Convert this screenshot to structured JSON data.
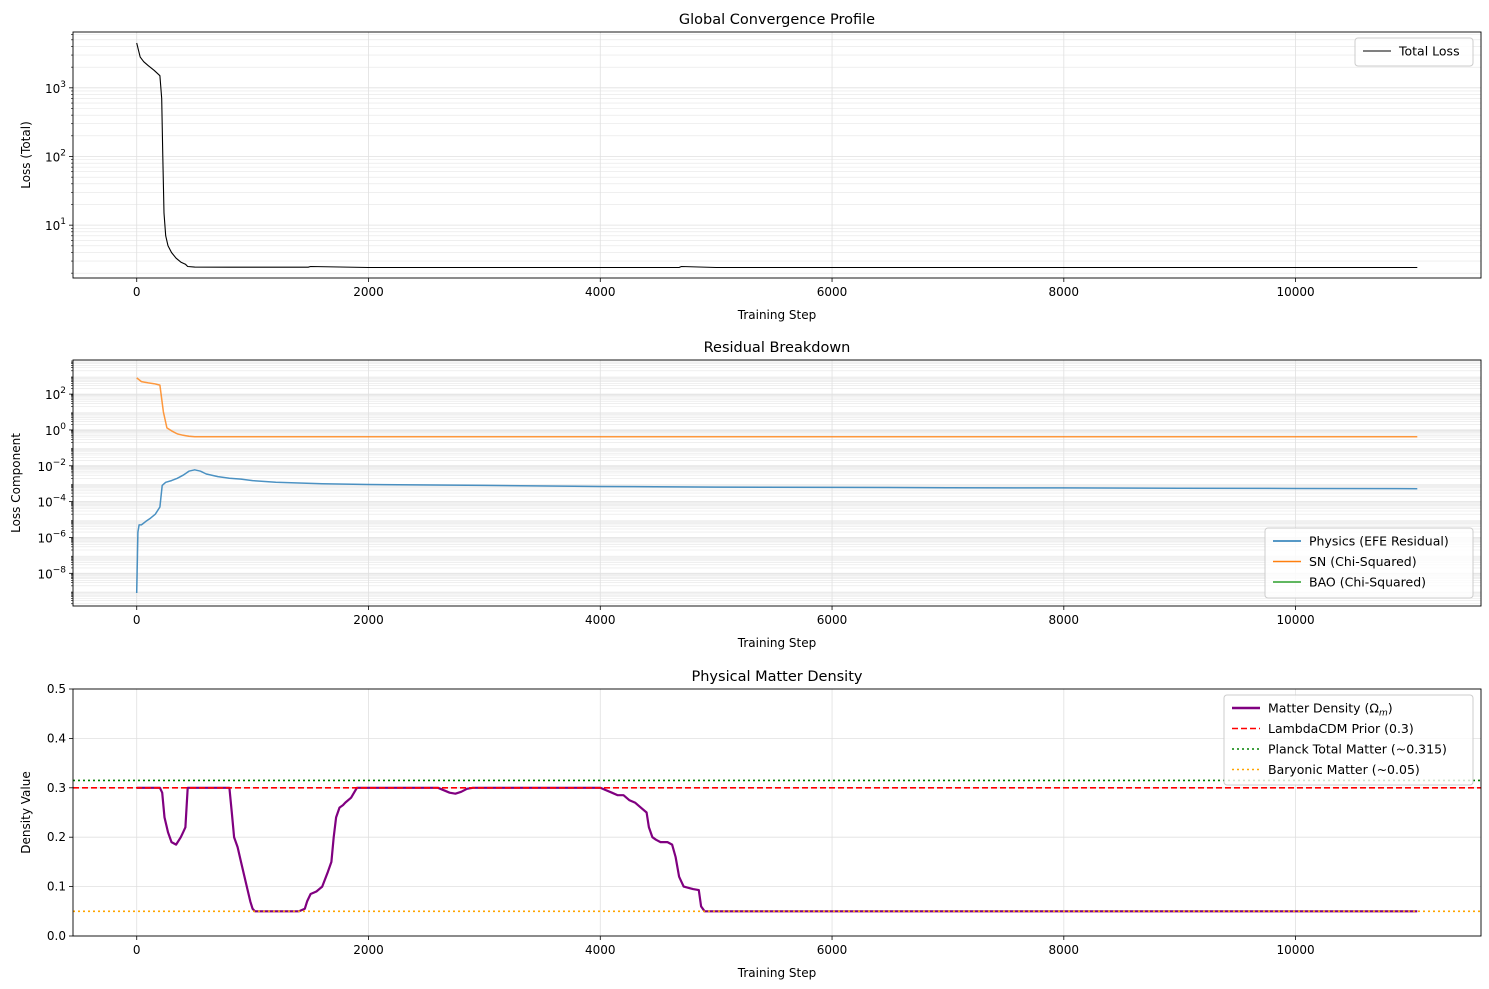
{
  "chart_data": [
    {
      "type": "line",
      "title": "Global Convergence Profile",
      "xlabel": "Training Step",
      "ylabel": "Loss (Total)",
      "xscale": "linear",
      "yscale": "log",
      "xlim": [
        -550,
        11600
      ],
      "ylim": [
        1.7,
        6500
      ],
      "xticks": [
        0,
        2000,
        4000,
        6000,
        8000,
        10000
      ],
      "xtick_labels": [
        "0",
        "2000",
        "4000",
        "6000",
        "8000",
        "10000"
      ],
      "yticks": [
        10,
        100,
        1000
      ],
      "ytick_labels": [
        "10",
        "10",
        "10"
      ],
      "ytick_exponents": [
        "1",
        "2",
        "3"
      ],
      "grid": true,
      "legend": "top-right",
      "series": [
        {
          "name": "Total Loss",
          "color": "#000000",
          "x": [
            0,
            30,
            60,
            100,
            150,
            200,
            215,
            225,
            235,
            250,
            270,
            300,
            340,
            380,
            420,
            440,
            500,
            800,
            1480,
            1500,
            2000,
            3000,
            4000,
            4680,
            4700,
            5000,
            6000,
            7000,
            8000,
            9000,
            10000,
            11050
          ],
          "y": [
            4500,
            2800,
            2400,
            2100,
            1800,
            1500,
            700,
            100,
            15,
            7,
            5,
            4,
            3.3,
            2.9,
            2.7,
            2.5,
            2.45,
            2.44,
            2.44,
            2.5,
            2.42,
            2.42,
            2.42,
            2.42,
            2.5,
            2.42,
            2.42,
            2.42,
            2.42,
            2.42,
            2.42,
            2.42
          ]
        }
      ]
    },
    {
      "type": "line",
      "title": "Residual Breakdown",
      "xlabel": "Training Step",
      "ylabel": "Loss Component",
      "xscale": "linear",
      "yscale": "log",
      "xlim": [
        -550,
        11600
      ],
      "ylim": [
        1.5e-10,
        8000
      ],
      "xticks": [
        0,
        2000,
        4000,
        6000,
        8000,
        10000
      ],
      "xtick_labels": [
        "0",
        "2000",
        "4000",
        "6000",
        "8000",
        "10000"
      ],
      "yticks": [
        1e-08,
        1e-06,
        0.0001,
        0.01,
        1,
        100
      ],
      "ytick_labels": [
        "10",
        "10",
        "10",
        "10",
        "10",
        "10"
      ],
      "ytick_exponents": [
        "−8",
        "−6",
        "−4",
        "−2",
        "0",
        "2"
      ],
      "grid": true,
      "legend": "lower-right",
      "series": [
        {
          "name": "Physics (EFE Residual)",
          "color": "#1f77b4",
          "x": [
            0,
            10,
            20,
            40,
            80,
            120,
            160,
            200,
            220,
            250,
            300,
            350,
            400,
            450,
            500,
            550,
            600,
            700,
            800,
            900,
            1000,
            1200,
            1400,
            1600,
            2000,
            3000,
            4000,
            5000,
            6000,
            7000,
            8000,
            9000,
            10000,
            11050
          ],
          "y": [
            8e-10,
            2e-06,
            5e-06,
            5e-06,
            8e-06,
            1.2e-05,
            2e-05,
            5e-05,
            0.0008,
            0.0012,
            0.0015,
            0.002,
            0.003,
            0.005,
            0.006,
            0.005,
            0.0035,
            0.0025,
            0.002,
            0.0018,
            0.0015,
            0.0012,
            0.0011,
            0.001,
            0.0009,
            0.0008,
            0.0007,
            0.00065,
            0.00062,
            0.0006,
            0.00058,
            0.00056,
            0.00054,
            0.00053
          ]
        },
        {
          "name": "SN (Chi-Squared)",
          "color": "#ff7f0e",
          "x": [
            0,
            40,
            100,
            150,
            200,
            230,
            260,
            300,
            350,
            400,
            450,
            500,
            1000,
            2000,
            4000,
            6000,
            8000,
            10000,
            11050
          ],
          "y": [
            800,
            500,
            420,
            380,
            320,
            10,
            1.3,
            0.9,
            0.6,
            0.5,
            0.45,
            0.42,
            0.42,
            0.42,
            0.42,
            0.42,
            0.42,
            0.42,
            0.42
          ]
        },
        {
          "name": "BAO (Chi-Squared)",
          "color": "#2ca02c",
          "x": [],
          "y": []
        }
      ]
    },
    {
      "type": "line",
      "title": "Physical Matter Density",
      "xlabel": "Training Step",
      "ylabel": "Density Value",
      "xscale": "linear",
      "yscale": "linear",
      "xlim": [
        -550,
        11600
      ],
      "ylim": [
        0,
        0.5
      ],
      "xticks": [
        0,
        2000,
        4000,
        6000,
        8000,
        10000
      ],
      "xtick_labels": [
        "0",
        "2000",
        "4000",
        "6000",
        "8000",
        "10000"
      ],
      "yticks": [
        0.0,
        0.1,
        0.2,
        0.3,
        0.4,
        0.5
      ],
      "ytick_labels": [
        "0.0",
        "0.1",
        "0.2",
        "0.3",
        "0.4",
        "0.5"
      ],
      "grid": true,
      "legend": "top-right",
      "series": [
        {
          "name": "Matter Density (Ω",
          "name_sub": "m",
          "name_suffix": ")",
          "color": "#800080",
          "style": "solid-thick",
          "x": [
            0,
            200,
            220,
            240,
            270,
            300,
            340,
            380,
            400,
            420,
            440,
            800,
            820,
            840,
            870,
            900,
            950,
            980,
            1000,
            1020,
            1400,
            1450,
            1470,
            1500,
            1550,
            1600,
            1650,
            1680,
            1700,
            1720,
            1750,
            1780,
            1800,
            1850,
            1900,
            2000,
            2600,
            2700,
            2750,
            2800,
            2850,
            2900,
            3000,
            3200,
            3400,
            3600,
            3800,
            4000,
            4050,
            4100,
            4150,
            4200,
            4250,
            4300,
            4350,
            4400,
            4420,
            4450,
            4480,
            4520,
            4580,
            4620,
            4650,
            4680,
            4700,
            4720,
            4800,
            4850,
            4870,
            4900,
            11050
          ],
          "y": [
            0.3,
            0.3,
            0.29,
            0.24,
            0.21,
            0.19,
            0.185,
            0.2,
            0.21,
            0.22,
            0.3,
            0.3,
            0.25,
            0.2,
            0.18,
            0.15,
            0.1,
            0.07,
            0.055,
            0.05,
            0.05,
            0.055,
            0.07,
            0.085,
            0.09,
            0.1,
            0.13,
            0.15,
            0.2,
            0.24,
            0.26,
            0.265,
            0.27,
            0.28,
            0.3,
            0.3,
            0.3,
            0.29,
            0.288,
            0.292,
            0.298,
            0.3,
            0.3,
            0.3,
            0.3,
            0.3,
            0.3,
            0.3,
            0.295,
            0.29,
            0.285,
            0.285,
            0.275,
            0.27,
            0.26,
            0.25,
            0.22,
            0.2,
            0.195,
            0.19,
            0.19,
            0.185,
            0.16,
            0.12,
            0.11,
            0.1,
            0.095,
            0.093,
            0.06,
            0.05,
            0.05
          ]
        },
        {
          "name": "LambdaCDM Prior (0.3)",
          "color": "#ff0000",
          "style": "dashed",
          "hline": 0.3
        },
        {
          "name": "Planck Total Matter (~0.315)",
          "color": "#008000",
          "style": "dotted",
          "hline": 0.315
        },
        {
          "name": "Baryonic Matter (~0.05)",
          "color": "#ffa500",
          "style": "dotted",
          "hline": 0.05
        }
      ]
    }
  ]
}
